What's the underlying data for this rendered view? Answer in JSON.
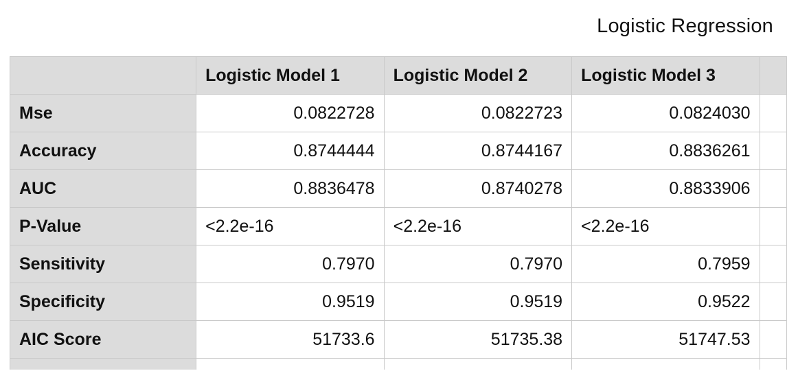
{
  "title": "Logistic Regression",
  "table": {
    "columns": [
      "Logistic Model 1",
      "Logistic Model 2",
      "Logistic Model 3"
    ],
    "rows": [
      {
        "label": "Mse",
        "values": [
          "0.0822728",
          "0.0822723",
          "0.0824030"
        ],
        "align": "num"
      },
      {
        "label": "Accuracy",
        "values": [
          "0.8744444",
          "0.8744167",
          "0.8836261"
        ],
        "align": "num"
      },
      {
        "label": "AUC",
        "values": [
          "0.8836478",
          "0.8740278",
          "0.8833906"
        ],
        "align": "num"
      },
      {
        "label": "P-Value",
        "values": [
          "<2.2e-16",
          "<2.2e-16",
          "<2.2e-16"
        ],
        "align": "txt"
      },
      {
        "label": "Sensitivity",
        "values": [
          "0.7970",
          "0.7970",
          "0.7959"
        ],
        "align": "num"
      },
      {
        "label": "Specificity",
        "values": [
          "0.9519",
          "0.9519",
          "0.9522"
        ],
        "align": "num"
      },
      {
        "label": "AIC Score",
        "values": [
          "51733.6",
          "51735.38",
          "51747.53"
        ],
        "align": "num"
      }
    ]
  }
}
